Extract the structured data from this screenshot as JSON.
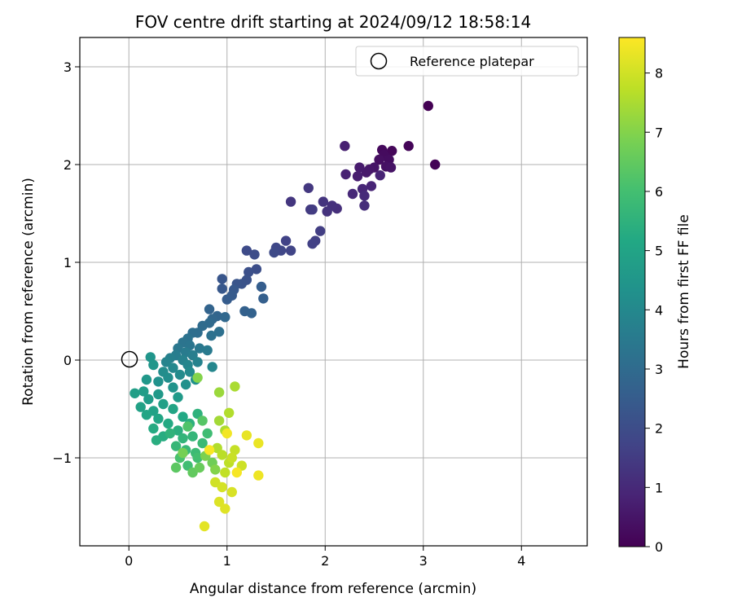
{
  "chart_data": {
    "type": "scatter",
    "title": "FOV centre drift starting at 2024/09/12 18:58:14",
    "xlabel": "Angular distance from reference (arcmin)",
    "ylabel": "Rotation from reference (arcmin)",
    "xlim": [
      -0.5,
      4.67
    ],
    "ylim": [
      -1.9,
      3.3
    ],
    "xticks": [
      0,
      1,
      2,
      3,
      4
    ],
    "xtick_labels": [
      "0",
      "1",
      "2",
      "3",
      "4"
    ],
    "yticks": [
      -1,
      0,
      1,
      2,
      3
    ],
    "ytick_labels": [
      "−1",
      "0",
      "1",
      "2",
      "3"
    ],
    "grid": true,
    "legend": {
      "position": "top-right",
      "entries": [
        "Reference platepar"
      ]
    },
    "reference_point": {
      "x": 0,
      "y": 0,
      "label": "Reference platepar"
    },
    "colorbar": {
      "label": "Hours from first FF file",
      "colormap": "viridis",
      "range": [
        0,
        8.6
      ],
      "ticks": [
        0,
        1,
        2,
        3,
        4,
        5,
        6,
        7,
        8
      ],
      "tick_labels": [
        "0",
        "1",
        "2",
        "3",
        "4",
        "5",
        "6",
        "7",
        "8"
      ]
    },
    "points": [
      {
        "x": 3.05,
        "y": 2.6,
        "t": 0.0
      },
      {
        "x": 3.12,
        "y": 2.0,
        "t": 0.05
      },
      {
        "x": 2.85,
        "y": 2.19,
        "t": 0.1
      },
      {
        "x": 2.68,
        "y": 2.14,
        "t": 0.15
      },
      {
        "x": 2.58,
        "y": 2.15,
        "t": 0.2
      },
      {
        "x": 2.6,
        "y": 2.1,
        "t": 0.25
      },
      {
        "x": 2.65,
        "y": 2.05,
        "t": 0.3
      },
      {
        "x": 2.55,
        "y": 2.05,
        "t": 0.35
      },
      {
        "x": 2.62,
        "y": 1.98,
        "t": 0.4
      },
      {
        "x": 2.67,
        "y": 1.97,
        "t": 0.45
      },
      {
        "x": 2.5,
        "y": 1.97,
        "t": 0.5
      },
      {
        "x": 2.45,
        "y": 1.95,
        "t": 0.55
      },
      {
        "x": 2.42,
        "y": 1.92,
        "t": 0.6
      },
      {
        "x": 2.35,
        "y": 1.97,
        "t": 0.65
      },
      {
        "x": 2.33,
        "y": 1.88,
        "t": 0.7
      },
      {
        "x": 2.2,
        "y": 2.19,
        "t": 0.75
      },
      {
        "x": 2.21,
        "y": 1.9,
        "t": 0.8
      },
      {
        "x": 2.56,
        "y": 1.89,
        "t": 0.85
      },
      {
        "x": 2.47,
        "y": 1.78,
        "t": 0.9
      },
      {
        "x": 2.38,
        "y": 1.75,
        "t": 0.95
      },
      {
        "x": 2.28,
        "y": 1.7,
        "t": 1.0
      },
      {
        "x": 2.4,
        "y": 1.68,
        "t": 1.05
      },
      {
        "x": 2.4,
        "y": 1.58,
        "t": 1.1
      },
      {
        "x": 2.12,
        "y": 1.55,
        "t": 1.15
      },
      {
        "x": 2.07,
        "y": 1.58,
        "t": 1.2
      },
      {
        "x": 2.02,
        "y": 1.52,
        "t": 1.25
      },
      {
        "x": 1.98,
        "y": 1.62,
        "t": 1.3
      },
      {
        "x": 1.65,
        "y": 1.62,
        "t": 1.35
      },
      {
        "x": 1.83,
        "y": 1.76,
        "t": 1.4
      },
      {
        "x": 1.85,
        "y": 1.54,
        "t": 1.45
      },
      {
        "x": 1.87,
        "y": 1.54,
        "t": 1.5
      },
      {
        "x": 1.95,
        "y": 1.32,
        "t": 1.55
      },
      {
        "x": 1.9,
        "y": 1.22,
        "t": 1.6
      },
      {
        "x": 1.87,
        "y": 1.19,
        "t": 1.65
      },
      {
        "x": 1.6,
        "y": 1.22,
        "t": 1.7
      },
      {
        "x": 1.65,
        "y": 1.12,
        "t": 1.75
      },
      {
        "x": 1.55,
        "y": 1.12,
        "t": 1.8
      },
      {
        "x": 1.5,
        "y": 1.15,
        "t": 1.85
      },
      {
        "x": 1.48,
        "y": 1.1,
        "t": 1.9
      },
      {
        "x": 1.2,
        "y": 1.12,
        "t": 1.95
      },
      {
        "x": 1.28,
        "y": 1.08,
        "t": 2.0
      },
      {
        "x": 1.3,
        "y": 0.93,
        "t": 2.05
      },
      {
        "x": 1.22,
        "y": 0.9,
        "t": 2.1
      },
      {
        "x": 1.2,
        "y": 0.82,
        "t": 2.15
      },
      {
        "x": 1.15,
        "y": 0.78,
        "t": 2.2
      },
      {
        "x": 1.1,
        "y": 0.78,
        "t": 2.25
      },
      {
        "x": 0.95,
        "y": 0.83,
        "t": 2.3
      },
      {
        "x": 0.95,
        "y": 0.73,
        "t": 2.35
      },
      {
        "x": 1.07,
        "y": 0.72,
        "t": 2.4
      },
      {
        "x": 1.05,
        "y": 0.66,
        "t": 2.45
      },
      {
        "x": 1.0,
        "y": 0.62,
        "t": 2.5
      },
      {
        "x": 1.35,
        "y": 0.75,
        "t": 2.55
      },
      {
        "x": 1.37,
        "y": 0.63,
        "t": 2.6
      },
      {
        "x": 1.18,
        "y": 0.5,
        "t": 2.65
      },
      {
        "x": 1.25,
        "y": 0.48,
        "t": 2.7
      },
      {
        "x": 0.82,
        "y": 0.52,
        "t": 2.75
      },
      {
        "x": 0.9,
        "y": 0.45,
        "t": 2.8
      },
      {
        "x": 0.85,
        "y": 0.42,
        "t": 2.85
      },
      {
        "x": 0.98,
        "y": 0.44,
        "t": 2.9
      },
      {
        "x": 0.82,
        "y": 0.38,
        "t": 2.95
      },
      {
        "x": 0.75,
        "y": 0.35,
        "t": 3.0
      },
      {
        "x": 0.7,
        "y": 0.28,
        "t": 3.05
      },
      {
        "x": 0.65,
        "y": 0.28,
        "t": 3.1
      },
      {
        "x": 0.92,
        "y": 0.29,
        "t": 3.15
      },
      {
        "x": 0.84,
        "y": 0.25,
        "t": 3.2
      },
      {
        "x": 0.6,
        "y": 0.22,
        "t": 3.25
      },
      {
        "x": 0.55,
        "y": 0.18,
        "t": 3.3
      },
      {
        "x": 0.62,
        "y": 0.15,
        "t": 3.35
      },
      {
        "x": 0.5,
        "y": 0.12,
        "t": 3.4
      },
      {
        "x": 0.72,
        "y": 0.12,
        "t": 3.45
      },
      {
        "x": 0.8,
        "y": 0.1,
        "t": 3.5
      },
      {
        "x": 0.58,
        "y": 0.08,
        "t": 3.55
      },
      {
        "x": 0.48,
        "y": 0.05,
        "t": 3.6
      },
      {
        "x": 0.65,
        "y": 0.05,
        "t": 3.65
      },
      {
        "x": 0.42,
        "y": 0.02,
        "t": 3.7
      },
      {
        "x": 0.55,
        "y": 0.0,
        "t": 3.75
      },
      {
        "x": 0.7,
        "y": -0.02,
        "t": 3.8
      },
      {
        "x": 0.38,
        "y": -0.02,
        "t": 3.85
      },
      {
        "x": 0.6,
        "y": -0.05,
        "t": 3.9
      },
      {
        "x": 0.85,
        "y": -0.07,
        "t": 3.95
      },
      {
        "x": 0.45,
        "y": -0.08,
        "t": 4.0
      },
      {
        "x": 0.62,
        "y": -0.12,
        "t": 4.05
      },
      {
        "x": 0.52,
        "y": -0.15,
        "t": 4.1
      },
      {
        "x": 0.35,
        "y": -0.12,
        "t": 4.15
      },
      {
        "x": 0.4,
        "y": -0.18,
        "t": 4.2
      },
      {
        "x": 0.68,
        "y": -0.2,
        "t": 4.25
      },
      {
        "x": 0.58,
        "y": -0.25,
        "t": 4.3
      },
      {
        "x": 0.3,
        "y": -0.22,
        "t": 4.35
      },
      {
        "x": 0.45,
        "y": -0.28,
        "t": 4.4
      },
      {
        "x": 0.22,
        "y": 0.03,
        "t": 4.45
      },
      {
        "x": 0.25,
        "y": -0.05,
        "t": 4.5
      },
      {
        "x": 0.18,
        "y": -0.2,
        "t": 4.55
      },
      {
        "x": 0.3,
        "y": -0.35,
        "t": 4.6
      },
      {
        "x": 0.5,
        "y": -0.38,
        "t": 4.65
      },
      {
        "x": 0.2,
        "y": -0.4,
        "t": 4.7
      },
      {
        "x": 0.15,
        "y": -0.32,
        "t": 4.75
      },
      {
        "x": 0.06,
        "y": -0.34,
        "t": 4.8
      },
      {
        "x": 0.35,
        "y": -0.45,
        "t": 4.85
      },
      {
        "x": 0.12,
        "y": -0.48,
        "t": 4.9
      },
      {
        "x": 0.25,
        "y": -0.52,
        "t": 4.95
      },
      {
        "x": 0.45,
        "y": -0.5,
        "t": 5.0
      },
      {
        "x": 0.18,
        "y": -0.56,
        "t": 5.05
      },
      {
        "x": 0.3,
        "y": -0.6,
        "t": 5.1
      },
      {
        "x": 0.55,
        "y": -0.58,
        "t": 5.15
      },
      {
        "x": 0.4,
        "y": -0.65,
        "t": 5.2
      },
      {
        "x": 0.25,
        "y": -0.7,
        "t": 5.25
      },
      {
        "x": 0.35,
        "y": -0.78,
        "t": 5.3
      },
      {
        "x": 0.28,
        "y": -0.82,
        "t": 5.35
      },
      {
        "x": 0.5,
        "y": -0.72,
        "t": 5.4
      },
      {
        "x": 0.62,
        "y": -0.65,
        "t": 5.45
      },
      {
        "x": 0.7,
        "y": -0.55,
        "t": 5.5
      },
      {
        "x": 0.42,
        "y": -0.75,
        "t": 5.55
      },
      {
        "x": 0.55,
        "y": -0.8,
        "t": 5.6
      },
      {
        "x": 0.65,
        "y": -0.78,
        "t": 5.65
      },
      {
        "x": 0.48,
        "y": -0.88,
        "t": 5.7
      },
      {
        "x": 0.58,
        "y": -0.92,
        "t": 5.75
      },
      {
        "x": 0.75,
        "y": -0.85,
        "t": 5.8
      },
      {
        "x": 0.68,
        "y": -0.95,
        "t": 5.85
      },
      {
        "x": 0.8,
        "y": -0.75,
        "t": 5.9
      },
      {
        "x": 0.6,
        "y": -1.08,
        "t": 5.95
      },
      {
        "x": 0.7,
        "y": -1.0,
        "t": 6.0
      },
      {
        "x": 0.52,
        "y": -1.0,
        "t": 6.1
      },
      {
        "x": 0.6,
        "y": -0.68,
        "t": 6.2
      },
      {
        "x": 0.75,
        "y": -0.62,
        "t": 6.3
      },
      {
        "x": 0.48,
        "y": -1.1,
        "t": 6.4
      },
      {
        "x": 0.65,
        "y": -1.15,
        "t": 6.5
      },
      {
        "x": 0.72,
        "y": -1.1,
        "t": 6.6
      },
      {
        "x": 0.85,
        "y": -1.05,
        "t": 6.7
      },
      {
        "x": 0.55,
        "y": -0.95,
        "t": 6.8
      },
      {
        "x": 0.78,
        "y": -0.98,
        "t": 6.9
      },
      {
        "x": 0.88,
        "y": -1.12,
        "t": 7.0
      },
      {
        "x": 0.7,
        "y": -0.18,
        "t": 7.0
      },
      {
        "x": 0.92,
        "y": -0.33,
        "t": 7.3
      },
      {
        "x": 1.08,
        "y": -0.27,
        "t": 7.5
      },
      {
        "x": 0.92,
        "y": -0.62,
        "t": 7.4
      },
      {
        "x": 1.02,
        "y": -0.54,
        "t": 7.6
      },
      {
        "x": 0.98,
        "y": -0.72,
        "t": 7.55
      },
      {
        "x": 0.9,
        "y": -0.9,
        "t": 7.6
      },
      {
        "x": 0.95,
        "y": -0.97,
        "t": 7.7
      },
      {
        "x": 1.02,
        "y": -1.05,
        "t": 7.75
      },
      {
        "x": 0.98,
        "y": -1.15,
        "t": 7.8
      },
      {
        "x": 1.08,
        "y": -0.92,
        "t": 7.85
      },
      {
        "x": 1.05,
        "y": -1.0,
        "t": 7.9
      },
      {
        "x": 1.15,
        "y": -1.08,
        "t": 7.95
      },
      {
        "x": 0.88,
        "y": -1.25,
        "t": 8.0
      },
      {
        "x": 0.95,
        "y": -1.3,
        "t": 8.05
      },
      {
        "x": 1.05,
        "y": -1.35,
        "t": 8.1
      },
      {
        "x": 0.92,
        "y": -1.45,
        "t": 8.15
      },
      {
        "x": 0.98,
        "y": -1.52,
        "t": 8.2
      },
      {
        "x": 0.77,
        "y": -1.7,
        "t": 8.25
      },
      {
        "x": 1.2,
        "y": -0.77,
        "t": 8.3
      },
      {
        "x": 1.32,
        "y": -0.85,
        "t": 8.35
      },
      {
        "x": 1.32,
        "y": -1.18,
        "t": 8.4
      },
      {
        "x": 1.0,
        "y": -0.75,
        "t": 8.45
      },
      {
        "x": 1.1,
        "y": -1.15,
        "t": 8.5
      },
      {
        "x": 0.82,
        "y": -0.92,
        "t": 8.55
      }
    ]
  }
}
